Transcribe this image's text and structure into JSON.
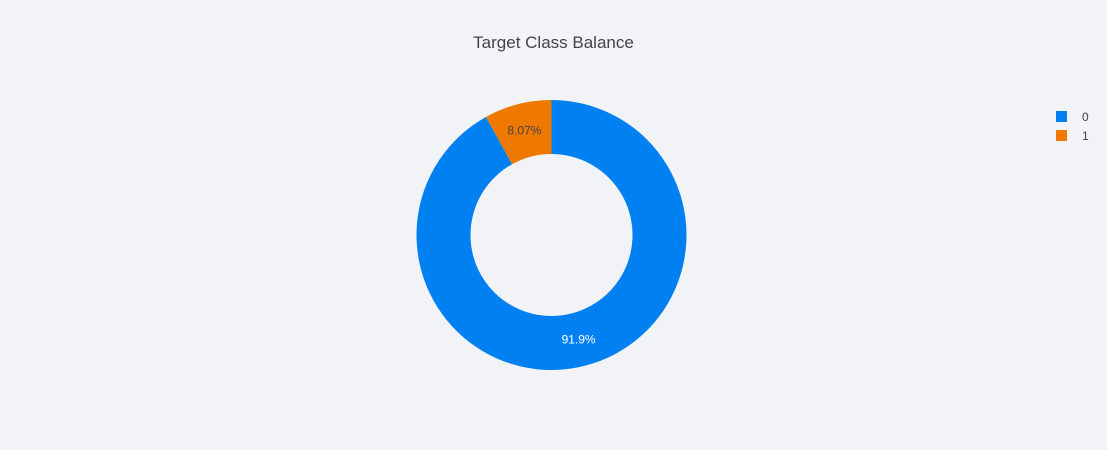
{
  "chart_data": {
    "type": "pie",
    "title": "Target Class Balance",
    "hole": true,
    "categories": [
      "0",
      "1"
    ],
    "values": [
      91.93,
      8.07
    ],
    "labels": [
      "91.9%",
      "8.07%"
    ],
    "colors": [
      "#0080f1",
      "#ee7800"
    ],
    "label_colors": [
      "#ffffff",
      "#444444"
    ],
    "legend": {
      "position": "top-right",
      "items": [
        "0",
        "1"
      ]
    }
  }
}
